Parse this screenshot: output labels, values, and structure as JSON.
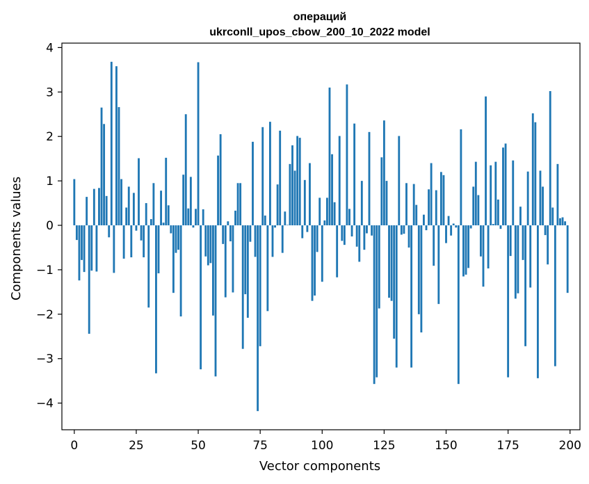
{
  "chart_data": {
    "type": "bar",
    "title_line1": "операций",
    "title_line2": "ukrconll_upos_cbow_200_10_2022 model",
    "xlabel": "Vector components",
    "ylabel": "Components values",
    "xlim": [
      -5,
      204
    ],
    "ylim": [
      -4.6,
      4.1
    ],
    "xticks": [
      0,
      25,
      50,
      75,
      100,
      125,
      150,
      175,
      200
    ],
    "xtick_labels": [
      "0",
      "25",
      "50",
      "75",
      "100",
      "125",
      "150",
      "175",
      "200"
    ],
    "yticks": [
      -4,
      -3,
      -2,
      -1,
      0,
      1,
      2,
      3,
      4
    ],
    "ytick_labels": [
      "−4",
      "−3",
      "−2",
      "−1",
      "0",
      "1",
      "2",
      "3",
      "4"
    ],
    "bar_color": "#1f77b4",
    "grid": false,
    "values": [
      1.04,
      -0.33,
      -1.24,
      -0.78,
      -1.05,
      0.64,
      -2.44,
      -1.02,
      0.82,
      -1.04,
      0.84,
      2.65,
      2.28,
      0.66,
      -0.27,
      3.68,
      -1.07,
      3.58,
      2.66,
      1.04,
      -0.75,
      0.4,
      0.87,
      -0.72,
      0.73,
      -0.12,
      1.51,
      -0.34,
      -0.72,
      0.5,
      -1.85,
      0.14,
      0.95,
      -3.33,
      -1.08,
      0.78,
      0.06,
      1.52,
      0.45,
      -0.18,
      -1.52,
      -0.62,
      -0.55,
      -2.05,
      1.14,
      2.5,
      0.38,
      1.09,
      -0.05,
      0.37,
      3.67,
      -3.24,
      0.36,
      -0.7,
      -0.9,
      -0.85,
      -2.03,
      -3.4,
      1.57,
      2.05,
      -0.42,
      -1.62,
      0.09,
      -0.36,
      -1.51,
      0.33,
      0.95,
      0.95,
      -2.78,
      -1.55,
      -2.08,
      -0.37,
      1.88,
      -0.71,
      -4.18,
      -2.72,
      2.21,
      0.22,
      -1.93,
      2.33,
      -0.71,
      -0.05,
      0.92,
      2.13,
      -0.62,
      0.31,
      0.01,
      1.38,
      1.8,
      1.23,
      2.01,
      1.97,
      -0.29,
      1.02,
      -0.15,
      1.4,
      -1.7,
      -1.58,
      -0.6,
      0.62,
      -1.27,
      0.11,
      0.62,
      3.1,
      1.6,
      0.52,
      -1.17,
      2.01,
      -0.35,
      -0.44,
      3.17,
      0.37,
      -0.25,
      2.29,
      -0.48,
      -0.82,
      1.0,
      -0.55,
      -0.18,
      2.1,
      -0.23,
      -3.57,
      -3.42,
      -1.87,
      1.53,
      2.36,
      1.0,
      -1.63,
      -1.7,
      -2.55,
      -3.2,
      2.01,
      -0.21,
      -0.19,
      0.95,
      -0.5,
      -3.2,
      0.93,
      0.46,
      -2.0,
      -2.41,
      0.24,
      -0.11,
      0.81,
      1.4,
      -0.91,
      0.79,
      -1.77,
      1.2,
      1.13,
      -0.4,
      0.21,
      -0.23,
      0.04,
      -0.05,
      -3.57,
      2.16,
      -1.15,
      -1.11,
      -0.96,
      -0.07,
      0.87,
      1.43,
      0.68,
      -0.7,
      -1.38,
      2.9,
      -0.97,
      1.35,
      0.03,
      1.43,
      0.58,
      -0.08,
      1.75,
      1.84,
      -3.42,
      -0.69,
      1.46,
      -1.65,
      -1.53,
      0.42,
      -0.78,
      -2.72,
      1.21,
      -1.4,
      2.52,
      2.32,
      -3.44,
      1.23,
      0.87,
      -0.22,
      -0.88,
      3.02,
      0.4,
      -3.17,
      1.38,
      0.16,
      0.18,
      0.09,
      -1.52
    ]
  }
}
